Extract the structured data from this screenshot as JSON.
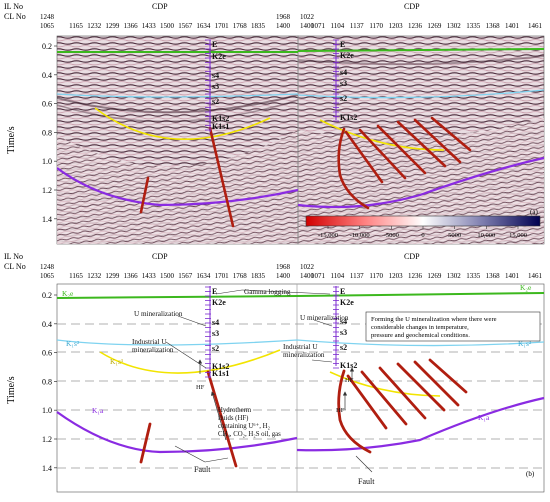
{
  "top": {
    "header": {
      "il_no": "IL No",
      "cl_no": "CL No",
      "cdp": "CDP"
    },
    "left": {
      "il_first": "1248",
      "cl_first": "1065",
      "ticks": [
        "1165",
        "1232",
        "1299",
        "1366",
        "1433",
        "1500",
        "1567",
        "1634",
        "1701",
        "1768",
        "1835"
      ],
      "il_end": "1968",
      "cl_end": "1400"
    },
    "right": {
      "il_first": "1022",
      "cl_first": "1400",
      "ticks": [
        "1071",
        "1104",
        "1137",
        "1170",
        "1203",
        "1236",
        "1269",
        "1302",
        "1335",
        "1368",
        "1401"
      ],
      "cl_end": "1461"
    },
    "y_axis_label": "Time/s",
    "y_ticks": [
      "0.2",
      "0.4",
      "0.6",
      "0.8",
      "1.0",
      "1.2",
      "1.4"
    ],
    "left_well_labels": [
      "E",
      "K2e",
      "s4",
      "s3",
      "s2",
      "K1s2",
      "K1s1"
    ],
    "right_well_labels": [
      "E",
      "K2e",
      "s4",
      "s3",
      "s2",
      "K1s2"
    ],
    "colorbar_ticks": [
      "-15,000",
      "-10,000",
      "-5000",
      "0",
      "5000",
      "10,000",
      "15,000"
    ],
    "panel_label": "(a)"
  },
  "bottom": {
    "header": {
      "il_no": "IL No",
      "cl_no": "CL No",
      "cdp": "CDP"
    },
    "left": {
      "il_first": "1248",
      "cl_first": "1065",
      "ticks": [
        "1165",
        "1232",
        "1299",
        "1366",
        "1433",
        "1500",
        "1567",
        "1634",
        "1701",
        "1768",
        "1835"
      ],
      "il_end": "1968",
      "cl_end": "1400"
    },
    "right": {
      "il_first": "1022",
      "cl_first": "1400",
      "ticks": [
        "1071",
        "1104",
        "1137",
        "1170",
        "1203",
        "1236",
        "1269",
        "1302",
        "1335",
        "1368",
        "1401"
      ],
      "cl_end": "1461"
    },
    "y_axis_label": "Time/s",
    "y_ticks": [
      "0.2",
      "0.4",
      "0.6",
      "0.8",
      "1.0",
      "1.2",
      "1.4"
    ],
    "left_well_labels": [
      "E",
      "K2e",
      "s4",
      "s3",
      "s2",
      "K1s2",
      "K1s1"
    ],
    "right_well_labels": [
      "E",
      "K2e",
      "s4",
      "s3",
      "s2",
      "K1s2"
    ],
    "formations": {
      "k2e": "K₂e",
      "k1s2": "K₁s²",
      "k1s1": "K₁s¹",
      "k1a": "K₁a"
    },
    "annotations": {
      "gamma": "Gamma logging",
      "u_min_left": "U mineralization",
      "ind_u_left_1": "Industrial U",
      "ind_u_left_2": "mineralization",
      "u_min_right": "U mineralization",
      "ind_u_right_1": "Industrial U",
      "ind_u_right_2": "mineralization",
      "hf": "HF",
      "hydro_1": "Hydrotherm",
      "hydro_2": "fluids (HF)",
      "hydro_3": "containing U⁶⁺, H₂",
      "hydro_4": "CH₄, CO₂, H₂S oil, gas",
      "fault": "Fault",
      "box_1": "Forming the U mineralization where there were",
      "box_2": "considerable changes in temperature,",
      "box_3": "pressure and geochemical conditions."
    },
    "panel_label": "(b)"
  },
  "colors": {
    "green": "#3cb81e",
    "cyan": "#7fd3f0",
    "yellow": "#f2e400",
    "purple": "#8a2be2",
    "fault": "#b01e10",
    "well": "#7c2bd0"
  }
}
